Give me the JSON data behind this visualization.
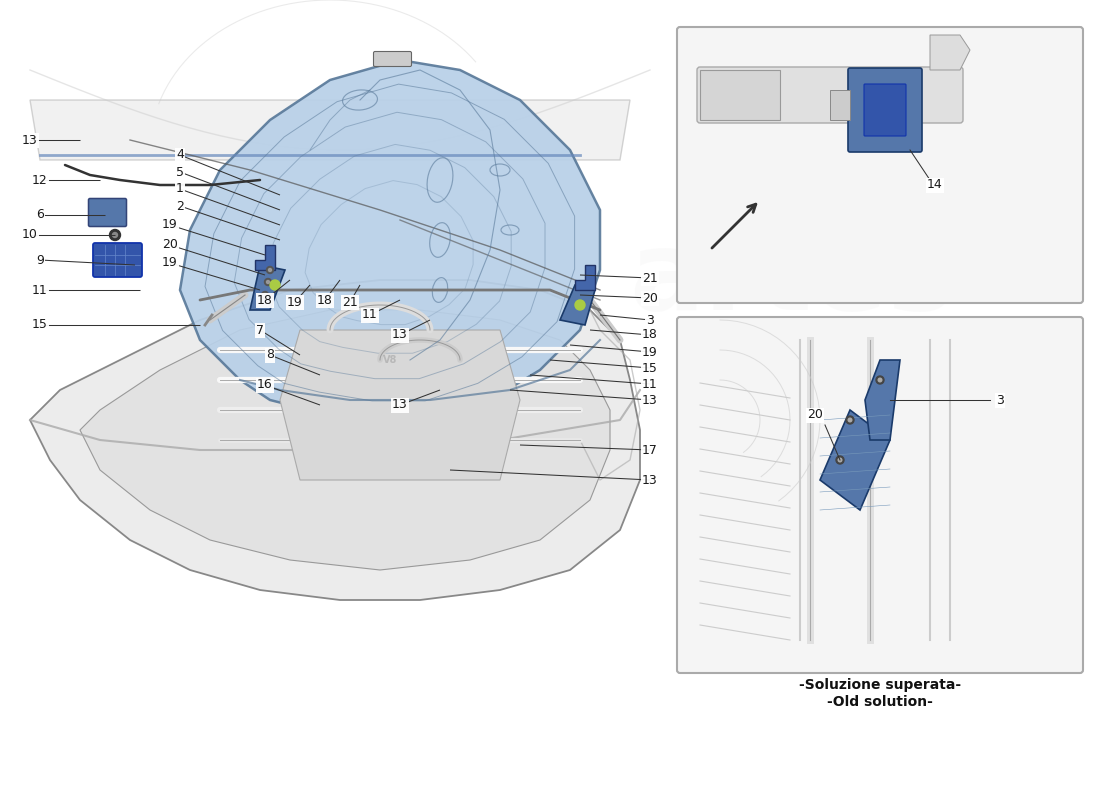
{
  "bg": "#ffffff",
  "hood_face": "#b8d0e8",
  "hood_edge": "#5a7a9a",
  "hood_face2": "#c5d8ec",
  "body_face": "#f0f0f0",
  "body_edge": "#888888",
  "lbl_color": "#1a1a1a",
  "line_color": "#333333",
  "box_face": "#f5f5f5",
  "box_edge": "#aaaaaa",
  "blue_part": "#5577aa",
  "blue_part_edge": "#1a3a6a",
  "green_bolt": "#bbcc88",
  "old_sol_line1": "-Soluzione superata-",
  "old_sol_line2": "-Old solution-",
  "label14": "14",
  "label20_box2": "20",
  "label3_box2": "3",
  "fs_label": 9.0,
  "lw_line": 0.75
}
